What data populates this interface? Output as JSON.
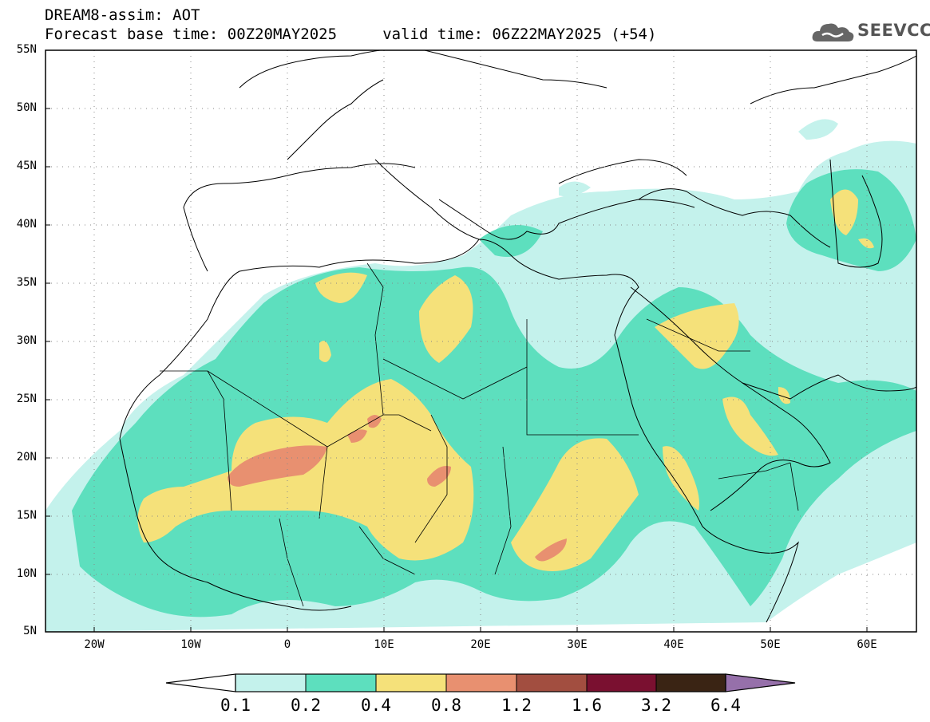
{
  "header": {
    "title_line1": "DREAM8-assim: AOT",
    "title_line2": "Forecast base time: 00Z20MAY2025     valid time: 06Z22MAY2025 (+54)"
  },
  "logo": {
    "text": "SEEVCCC",
    "icon": "cloud-icon"
  },
  "map": {
    "variable": "AOT",
    "lat_ticks": [
      "55N",
      "50N",
      "45N",
      "40N",
      "35N",
      "30N",
      "25N",
      "20N",
      "15N",
      "10N",
      "5N"
    ],
    "lon_ticks": [
      "20W",
      "10W",
      "0",
      "10E",
      "20E",
      "30E",
      "40E",
      "50E",
      "60E"
    ],
    "lat_range": [
      5,
      55
    ],
    "lon_range": [
      -25,
      65
    ],
    "grid": true,
    "gridline_style": "dotted"
  },
  "colorbar": {
    "labels": [
      "0.1",
      "0.2",
      "0.4",
      "0.8",
      "1.2",
      "1.6",
      "3.2",
      "6.4"
    ],
    "colors": [
      "#c4f2ec",
      "#5ddfbe",
      "#f5e17a",
      "#e89070",
      "#a24e40",
      "#7a1030",
      "#3a2414",
      "#9670aa"
    ],
    "extend": "both"
  }
}
